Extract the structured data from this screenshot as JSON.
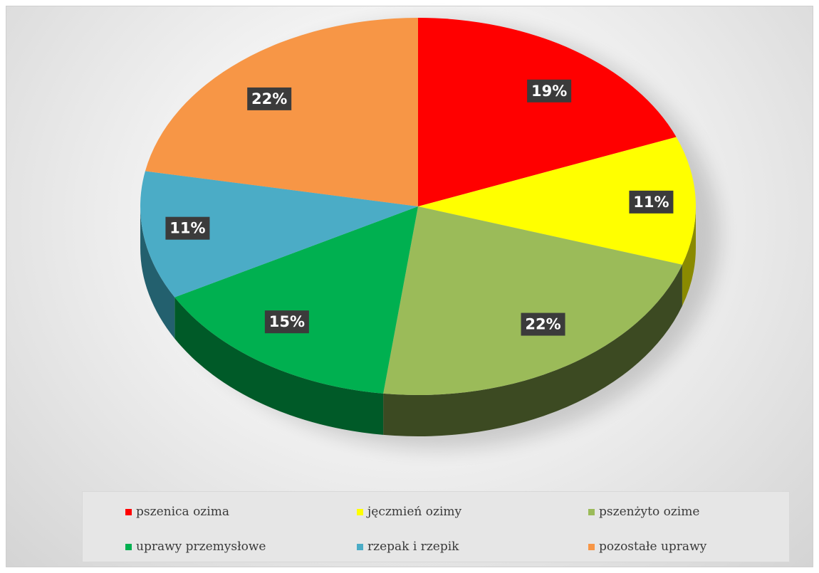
{
  "chart_data": {
    "type": "pie",
    "style": "3d",
    "title": "",
    "categories": [
      "pszenica ozima",
      "jęczmień ozimy",
      "pszenżyto ozime",
      "uprawy przemysłowe",
      "rzepak i rzepik",
      "pozostałe uprawy"
    ],
    "values": [
      19,
      11,
      22,
      15,
      11,
      22
    ],
    "data_labels": [
      "19%",
      "11%",
      "22%",
      "15%",
      "11%",
      "22%"
    ],
    "colors": [
      "#ff0000",
      "#ffff00",
      "#9bbb59",
      "#00b050",
      "#4bacc6",
      "#f79646"
    ],
    "side_colors": [
      "#8a0000",
      "#8a8a00",
      "#3c4a22",
      "#005a28",
      "#23606e",
      "#8a5018"
    ],
    "legend_position": "bottom"
  },
  "legend": {
    "items": [
      {
        "label": "pszenica ozima",
        "color": "#ff0000"
      },
      {
        "label": "jęczmień ozimy",
        "color": "#ffff00"
      },
      {
        "label": "pszenżyto ozime",
        "color": "#9bbb59"
      },
      {
        "label": "uprawy przemysłowe",
        "color": "#00b050"
      },
      {
        "label": "rzepak i rzepik",
        "color": "#4bacc6"
      },
      {
        "label": "pozostałe uprawy",
        "color": "#f79646"
      }
    ]
  }
}
